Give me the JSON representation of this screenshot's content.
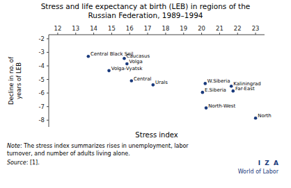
{
  "chart_data": {
    "type": "scatter",
    "title": "Stress and life expectancy at birth (LEB) in regions of the\nRussian Federation, 1989–1994",
    "xlabel": "Stress index",
    "ylabel": "Decline in no. of\nyears of LEB",
    "x": [
      13.7,
      15.7,
      15.85,
      14.85,
      16.1,
      17.3,
      20.2,
      20.05,
      21.65,
      21.75,
      20.25,
      23.0
    ],
    "values": [
      -3.3,
      -3.45,
      -3.85,
      -4.35,
      -5.1,
      -5.4,
      -5.3,
      -5.95,
      -5.5,
      -5.85,
      -7.1,
      -7.85
    ],
    "labels": [
      "Central Black Soil",
      "Caucasus",
      "Volga",
      "Volga-Vyatsk",
      "Central",
      "Urals",
      "W.Siberia",
      "E.Siberia",
      "Kaliningrad",
      "Far-East",
      "North-West",
      "North"
    ],
    "color": "#1a3a7c",
    "xlim": [
      11.5,
      23.5
    ],
    "ylim": [
      -8.5,
      -1.7
    ],
    "xticks": [
      12,
      13,
      14,
      15,
      16,
      17,
      18,
      19,
      20,
      21,
      22,
      23
    ],
    "yticks": [
      -2,
      -3,
      -4,
      -5,
      -6,
      -7,
      -8
    ],
    "grid": false,
    "note": [
      "Note: The stress index summarizes rises in unemployment, labor",
      "turnover, and number of adults living alone."
    ],
    "source": "Source: [1].",
    "credit": [
      "I  Z  A",
      "World of Labor"
    ]
  }
}
